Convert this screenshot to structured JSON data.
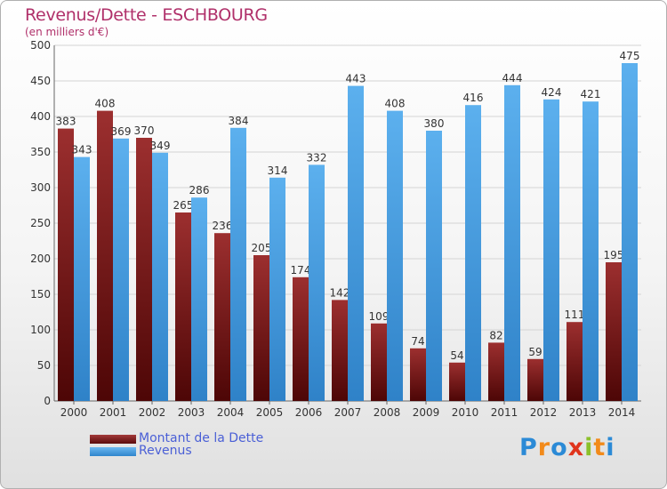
{
  "chart_data": {
    "type": "bar",
    "title": "Revenus/Dette - ESCHBOURG",
    "subtitle": "(en milliers d'€)",
    "categories": [
      "2000",
      "2001",
      "2002",
      "2003",
      "2004",
      "2005",
      "2006",
      "2007",
      "2008",
      "2009",
      "2010",
      "2011",
      "2012",
      "2013",
      "2014"
    ],
    "series": [
      {
        "name": "Montant de la Dette",
        "color": "#8b1a1a",
        "values": [
          383,
          408,
          370,
          265,
          236,
          205,
          174,
          142,
          109,
          74,
          54,
          82,
          59,
          111,
          195
        ]
      },
      {
        "name": "Revenus",
        "color": "#4aa3e6",
        "values": [
          343,
          369,
          349,
          286,
          384,
          314,
          332,
          443,
          408,
          380,
          416,
          444,
          424,
          421,
          475
        ]
      }
    ],
    "ylim": [
      0,
      500
    ],
    "yticks": [
      0,
      50,
      100,
      150,
      200,
      250,
      300,
      350,
      400,
      450,
      500
    ],
    "grid": true,
    "legend_position": "bottom-left"
  },
  "brand": {
    "logo_text": "Proxiti",
    "letter_colors": [
      "#2b8ad6",
      "#f28a1a",
      "#2b8ad6",
      "#e0341c",
      "#8bc02a",
      "#f28a1a",
      "#2b8ad6"
    ]
  }
}
